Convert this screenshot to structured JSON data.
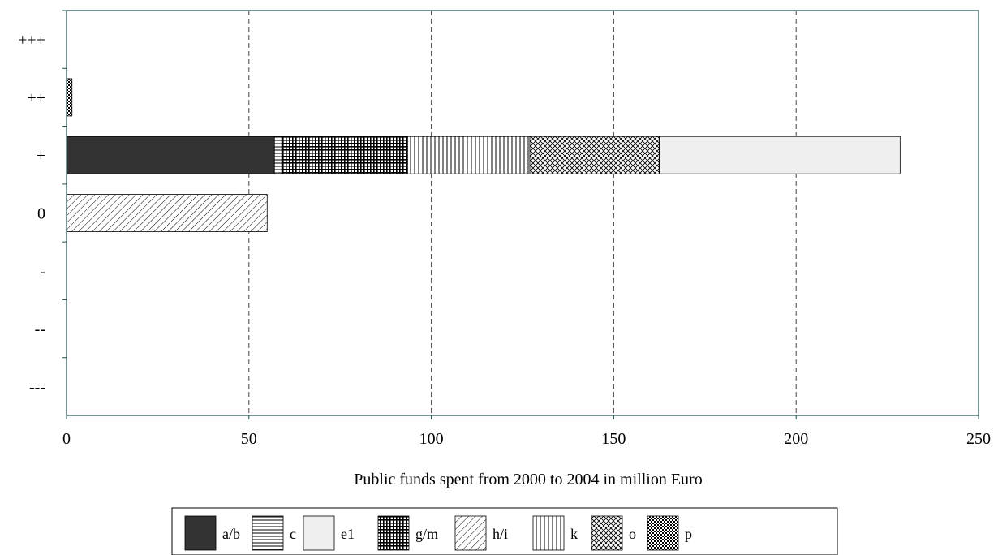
{
  "chart_data": {
    "type": "bar",
    "orientation": "horizontal",
    "stacked": true,
    "xlabel": "Public funds spent from 2000 to 2004 in million  Euro",
    "xlim": [
      0,
      250
    ],
    "x_ticks": [
      "0",
      "50",
      "100",
      "150",
      "200",
      "250"
    ],
    "grid": "vertical dashed",
    "legend_placement": "bottom",
    "categories": [
      "+++",
      "++",
      "+",
      "0",
      "-",
      "--",
      "---"
    ],
    "series": [
      {
        "name": "a/b",
        "pattern": "solid",
        "color": "#333333",
        "values": [
          0,
          0,
          57,
          0,
          0,
          0,
          0
        ]
      },
      {
        "name": "c",
        "pattern": "horizontal",
        "color": "#000000",
        "values": [
          0,
          0,
          2,
          0,
          0,
          0,
          0
        ]
      },
      {
        "name": "e1",
        "pattern": "solid",
        "color": "#efefef",
        "values": [
          0,
          0,
          66,
          0,
          0,
          0,
          0
        ]
      },
      {
        "name": "g/m",
        "pattern": "grid",
        "color": "#000000",
        "values": [
          0,
          0,
          34.5,
          0,
          0,
          0,
          0
        ]
      },
      {
        "name": "h/i",
        "pattern": "diagonal",
        "color": "#000000",
        "values": [
          0,
          0,
          0,
          55,
          0,
          0,
          0
        ]
      },
      {
        "name": "k",
        "pattern": "vertical",
        "color": "#000000",
        "values": [
          0,
          0,
          33.5,
          0,
          0,
          0,
          0
        ]
      },
      {
        "name": "o",
        "pattern": "crosshatch",
        "color": "#000000",
        "values": [
          0,
          0,
          35.5,
          0,
          0,
          0,
          0
        ]
      },
      {
        "name": "p",
        "pattern": "checker",
        "color": "#000000",
        "values": [
          0,
          1.5,
          0,
          0,
          0,
          0,
          0
        ]
      }
    ],
    "stack_order": [
      "a/b",
      "c",
      "g/m",
      "k",
      "o",
      "e1",
      "h/i",
      "p"
    ]
  }
}
